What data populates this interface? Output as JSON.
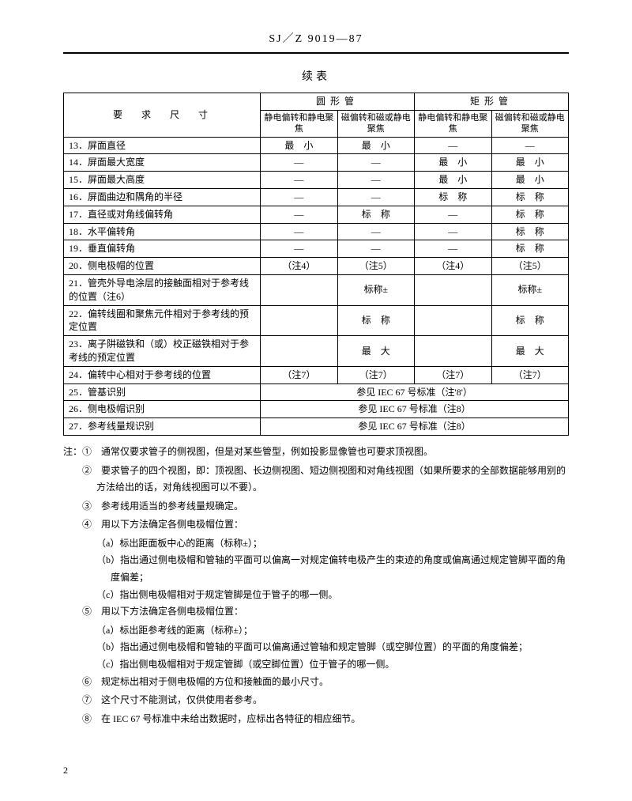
{
  "header": "SJ／Z 9019—87",
  "subtitle": "续表",
  "tableHeader": {
    "reqLabel": "要　求　尺　寸",
    "col1": "圆形管",
    "col2": "矩形管",
    "sub1": "静电偏转和静电聚焦",
    "sub2": "磁偏转和磁或静电聚焦",
    "sub3": "静电偏转和静电聚焦",
    "sub4": "磁偏转和磁或静电聚焦"
  },
  "rows": [
    {
      "desc": "13．屏面直径",
      "c1": "最　小",
      "c2": "最　小",
      "c3": "—",
      "c4": "—"
    },
    {
      "desc": "14．屏面最大宽度",
      "c1": "—",
      "c2": "—",
      "c3": "最　小",
      "c4": "最　小"
    },
    {
      "desc": "15．屏面最大高度",
      "c1": "—",
      "c2": "—",
      "c3": "最　小",
      "c4": "最　小"
    },
    {
      "desc": "16．屏面曲边和隅角的半径",
      "c1": "—",
      "c2": "—",
      "c3": "标　称",
      "c4": "标　称"
    },
    {
      "desc": "17．直径或对角线偏转角",
      "c1": "—",
      "c2": "标　称",
      "c3": "—",
      "c4": "标　称"
    },
    {
      "desc": "18．水平偏转角",
      "c1": "—",
      "c2": "—",
      "c3": "—",
      "c4": "标　称"
    },
    {
      "desc": "19．垂直偏转角",
      "c1": "—",
      "c2": "—",
      "c3": "—",
      "c4": "标　称"
    },
    {
      "desc": "20．侧电极帽的位置",
      "c1": "（注4）",
      "c2": "（注5）",
      "c3": "（注4）",
      "c4": "（注5）"
    },
    {
      "desc": "21．管壳外导电涂层的接触面相对于参考线的位置（注6）",
      "c1": "",
      "c2": "标称±",
      "c3": "",
      "c4": "标称±"
    },
    {
      "desc": "22．偏转线圈和聚焦元件相对于参考线的预定位置",
      "c1": "",
      "c2": "标　称",
      "c3": "",
      "c4": "标　称"
    },
    {
      "desc": "23．离子阱磁铁和（或）校正磁铁相对于参考线的预定位置",
      "c1": "",
      "c2": "最　大",
      "c3": "",
      "c4": "最　大"
    },
    {
      "desc": "24．偏转中心相对于参考线的位置",
      "c1": "（注7）",
      "c2": "（注7）",
      "c3": "（注7）",
      "c4": "（注7）"
    },
    {
      "desc": "25．管基识别",
      "merged": "参见 IEC 67 号标准（注'8'）"
    },
    {
      "desc": "26．侧电极帽识别",
      "merged": "参见 IEC 67 号标准（注8）"
    },
    {
      "desc": "27．参考线量规识别",
      "merged": "参见 IEC 67 号标准（注8）"
    }
  ],
  "notes": {
    "prefix": "注：",
    "items": [
      {
        "num": "①",
        "text": "通常仅要求管子的侧视图，但是对某些管型，例如投影显像管也可要求顶视图。"
      },
      {
        "num": "②",
        "text": "要求管子的四个视图，即：顶视图、长边侧视图、短边侧视图和对角线视图（如果所要求的全部数据能够用别的方法给出的话，对角线视图可以不要）。"
      },
      {
        "num": "③",
        "text": "参考线用适当的参考线量规确定。"
      },
      {
        "num": "④",
        "text": "用以下方法确定各侧电极帽位置：",
        "subs": [
          "（a）标出距面板中心的距离（标称±）；",
          "（b）指出通过侧电极帽和管轴的平面可以偏离一对规定偏转电极产生的束迹的角度或偏离通过规定管脚平面的角度偏差；",
          "（c）指出侧电极帽相对于规定管脚是位于管子的哪一侧。"
        ]
      },
      {
        "num": "⑤",
        "text": "用以下方法确定各侧电极帽位置：",
        "subs": [
          "（a）标出距参考线的距离（标称±）；",
          "（b）指出通过侧电极帽和管轴的平面可以偏离通过管轴和规定管脚（或空脚位置）的平面的角度偏差；",
          "（c）指出侧电极帽相对于规定管脚（或空脚位置）位于管子的哪一侧。"
        ]
      },
      {
        "num": "⑥",
        "text": "规定标出相对于侧电极帽的方位和接触面的最小尺寸。"
      },
      {
        "num": "⑦",
        "text": "这个尺寸不能测试，仅供使用者参考。"
      },
      {
        "num": "⑧",
        "text": "在 IEC 67 号标准中未给出数据时，应标出各特征的相应细节。"
      }
    ]
  },
  "pageNum": "2"
}
